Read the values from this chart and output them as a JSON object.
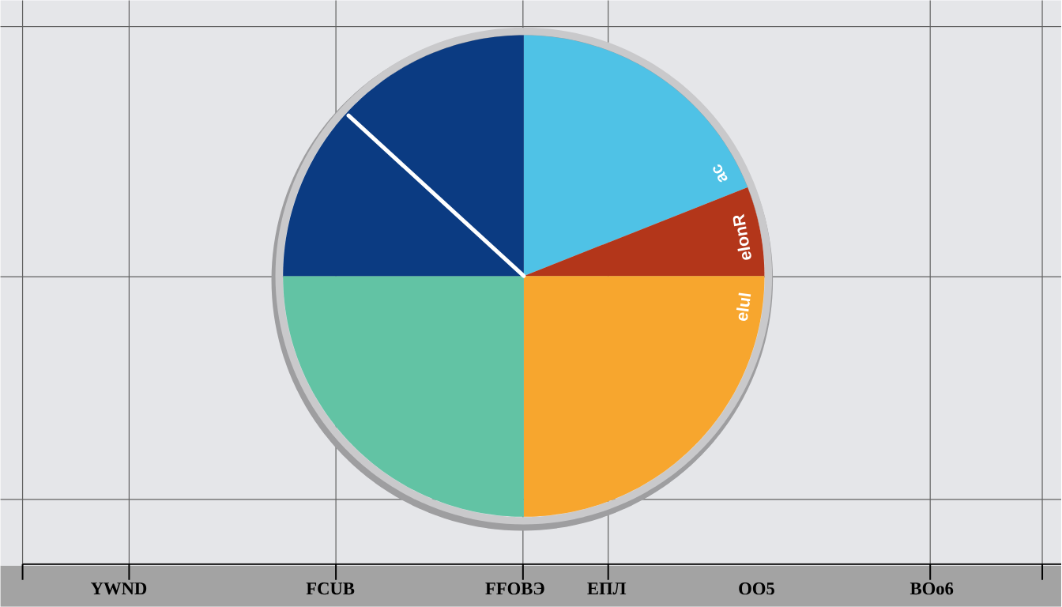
{
  "chart_data": {
    "type": "pie",
    "categories": [
      "ac",
      "elonR",
      "elul",
      null,
      null,
      null
    ],
    "values": [
      19,
      6,
      25,
      25,
      11.8,
      13.2
    ],
    "colors": [
      "#4fc2e6",
      "#b3361a",
      "#f7a62e",
      "#62c3a4",
      "#0b3b82",
      "#0b3b82"
    ],
    "grid": true,
    "annotations": [
      "YWND",
      "FCUB",
      "FFOBЭ",
      "EПЛ",
      "OO5",
      "BOo6"
    ]
  }
}
